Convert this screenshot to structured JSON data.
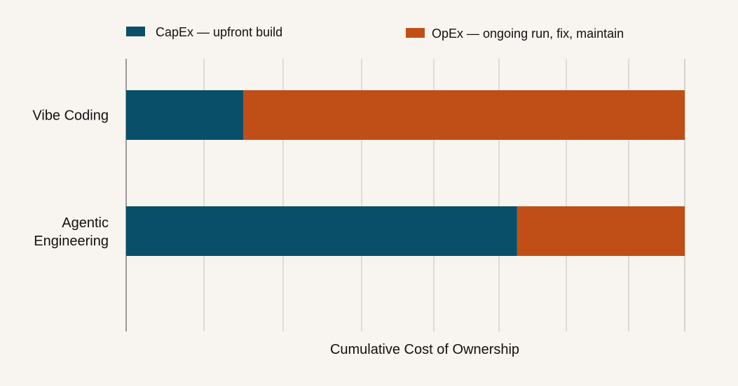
{
  "chart_data": {
    "type": "bar",
    "orientation": "horizontal",
    "stacked": true,
    "categories": [
      "Vibe Coding",
      "Agentic Engineering"
    ],
    "series": [
      {
        "name": "CapEx — upfront build",
        "values": [
          21,
          70
        ],
        "color": "#0a4f6a"
      },
      {
        "name": "OpEx — ongoing run, fix, maintain",
        "values": [
          79,
          30
        ],
        "color": "#c04f17"
      }
    ],
    "title": "",
    "xlabel": "Cumulative Cost of Ownership",
    "ylabel": "",
    "xlim": [
      0,
      100
    ],
    "grid": true,
    "legend_position": "top",
    "colors": {
      "background": "#f8f4ef",
      "grid": "#d6d4d1",
      "axis": "#9c9a97",
      "text": "#111111"
    }
  }
}
